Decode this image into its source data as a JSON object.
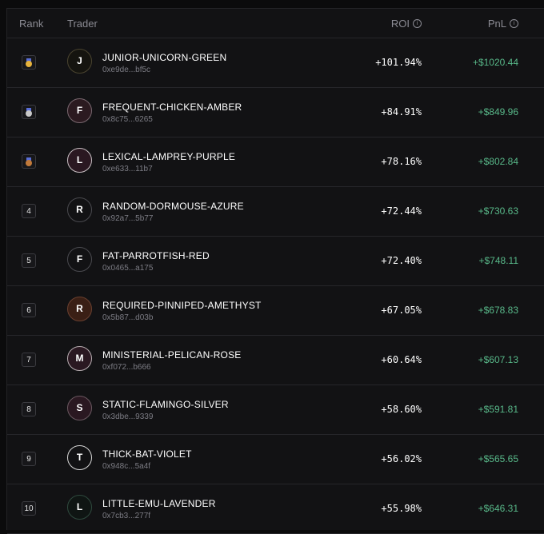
{
  "header": {
    "rank": "Rank",
    "trader": "Trader",
    "roi": "ROI",
    "pnl": "PnL"
  },
  "colors": {
    "positive": "#58b889",
    "gold": "#e6b33c",
    "silver": "#c9c9c9",
    "bronze": "#c27a3a"
  },
  "rows": [
    {
      "rank": "1",
      "medal": "gold-medal",
      "initial": "J",
      "name": "JUNIOR-UNICORN-GREEN",
      "address": "0xe9de...bf5c",
      "roi": "+101.94%",
      "pnl": "+$1020.44",
      "avatar_bg": "#15140f",
      "avatar_border": "#4a4430"
    },
    {
      "rank": "2",
      "medal": "silver-medal",
      "initial": "F",
      "name": "FREQUENT-CHICKEN-AMBER",
      "address": "0x8c75...6265",
      "roi": "+84.91%",
      "pnl": "+$849.96",
      "avatar_bg": "#2b1a20",
      "avatar_border": "#7a6870"
    },
    {
      "rank": "3",
      "medal": "bronze-medal",
      "initial": "L",
      "name": "LEXICAL-LAMPREY-PURPLE",
      "address": "0xe633...11b7",
      "roi": "+78.16%",
      "pnl": "+$802.84",
      "avatar_bg": "#2a1821",
      "avatar_border": "#c9c0c4"
    },
    {
      "rank": "4",
      "medal": "",
      "initial": "R",
      "name": "RANDOM-DORMOUSE-AZURE",
      "address": "0x92a7...5b77",
      "roi": "+72.44%",
      "pnl": "+$730.63",
      "avatar_bg": "#121214",
      "avatar_border": "#4a4a4f"
    },
    {
      "rank": "5",
      "medal": "",
      "initial": "F",
      "name": "FAT-PARROTFISH-RED",
      "address": "0x0465...a175",
      "roi": "+72.40%",
      "pnl": "+$748.11",
      "avatar_bg": "#121214",
      "avatar_border": "#4a4a4f"
    },
    {
      "rank": "6",
      "medal": "",
      "initial": "R",
      "name": "REQUIRED-PINNIPED-AMETHYST",
      "address": "0x5b87...d03b",
      "roi": "+67.05%",
      "pnl": "+$678.83",
      "avatar_bg": "#3a1f15",
      "avatar_border": "#6a4030"
    },
    {
      "rank": "7",
      "medal": "",
      "initial": "M",
      "name": "MINISTERIAL-PELICAN-ROSE",
      "address": "0xf072...b666",
      "roi": "+60.64%",
      "pnl": "+$607.13",
      "avatar_bg": "#2a1821",
      "avatar_border": "#b8aeb2"
    },
    {
      "rank": "8",
      "medal": "",
      "initial": "S",
      "name": "STATIC-FLAMINGO-SILVER",
      "address": "0x3dbe...9339",
      "roi": "+58.60%",
      "pnl": "+$591.81",
      "avatar_bg": "#2a1821",
      "avatar_border": "#6a5860"
    },
    {
      "rank": "9",
      "medal": "",
      "initial": "T",
      "name": "THICK-BAT-VIOLET",
      "address": "0x948c...5a4f",
      "roi": "+56.02%",
      "pnl": "+$565.65",
      "avatar_bg": "#121214",
      "avatar_border": "#d8d8d8"
    },
    {
      "rank": "10",
      "medal": "",
      "initial": "L",
      "name": "LITTLE-EMU-LAVENDER",
      "address": "0x7cb3...277f",
      "roi": "+55.98%",
      "pnl": "+$646.31",
      "avatar_bg": "#0f1513",
      "avatar_border": "#2f4a3e"
    }
  ]
}
